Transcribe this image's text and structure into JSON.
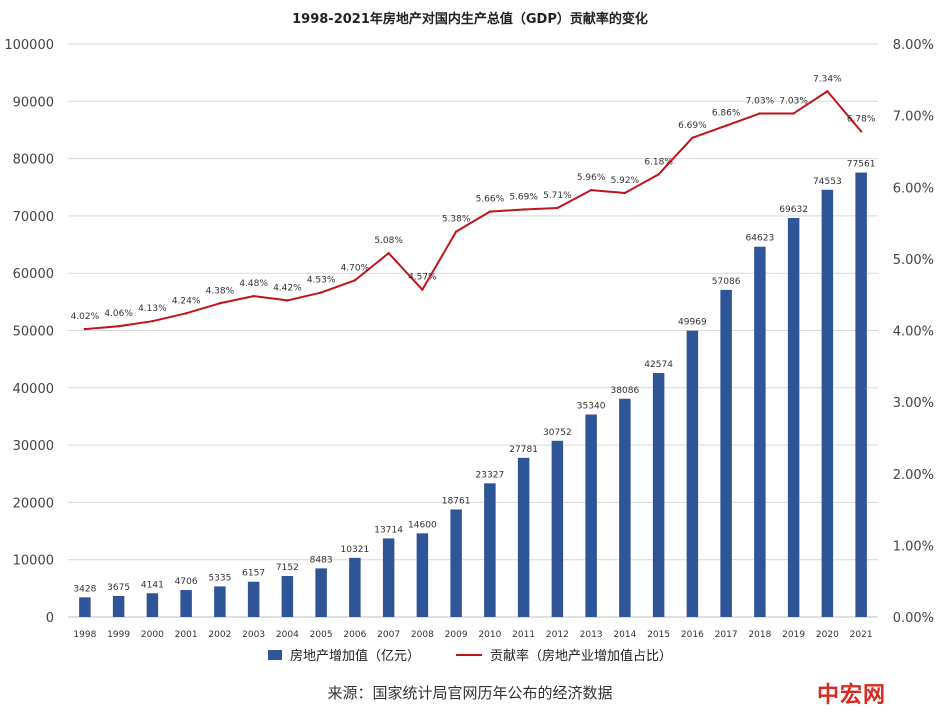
{
  "chart_data": {
    "type": "bar",
    "title": "1998-2021年房地产对国内生产总值（GDP）贡献率的变化",
    "categories": [
      "1998",
      "1999",
      "2000",
      "2001",
      "2002",
      "2003",
      "2004",
      "2005",
      "2006",
      "2007",
      "2008",
      "2009",
      "2010",
      "2011",
      "2012",
      "2013",
      "2014",
      "2015",
      "2016",
      "2017",
      "2018",
      "2019",
      "2020",
      "2021"
    ],
    "series": [
      {
        "name": "房地产增加值（亿元）",
        "type": "bar",
        "axis": "left",
        "color": "#2e5597",
        "values": [
          3428,
          3675,
          4141,
          4706,
          5335,
          6157,
          7152,
          8483,
          10321,
          13714,
          14600,
          18761,
          23327,
          27781,
          30752,
          35340,
          38086,
          42574,
          49969,
          57086,
          64623,
          69632,
          74553,
          77561
        ]
      },
      {
        "name": "贡献率（房地产业增加值占比）",
        "type": "line",
        "axis": "right",
        "color": "#c0141c",
        "values": [
          4.02,
          4.06,
          4.13,
          4.24,
          4.38,
          4.48,
          4.42,
          4.53,
          4.7,
          5.08,
          4.57,
          5.38,
          5.66,
          5.69,
          5.71,
          5.96,
          5.92,
          6.18,
          6.69,
          6.86,
          7.03,
          7.03,
          7.34,
          6.78
        ],
        "labels": [
          "4.02%",
          "4.06%",
          "4.13%",
          "4.24%",
          "4.38%",
          "4.48%",
          "4.42%",
          "4.53%",
          "4.70%",
          "5.08%",
          "4.57%",
          "5.38%",
          "5.66%",
          "5.69%",
          "5.71%",
          "5.96%",
          "5.92%",
          "6.18%",
          "6.69%",
          "6.86%",
          "7.03%",
          "7.03%",
          "7.34%",
          "6.78%"
        ]
      }
    ],
    "y_left": {
      "ylim": [
        0,
        100000
      ],
      "ticks": [
        "0",
        "10000",
        "20000",
        "30000",
        "40000",
        "50000",
        "60000",
        "70000",
        "80000",
        "90000",
        "100000"
      ]
    },
    "y_right": {
      "ylim": [
        0,
        8
      ],
      "ticks": [
        "0.00%",
        "1.00%",
        "2.00%",
        "3.00%",
        "4.00%",
        "5.00%",
        "6.00%",
        "7.00%",
        "8.00%"
      ]
    },
    "grid": true,
    "legend": "bottom"
  },
  "source": "来源：国家统计局官网历年公布的经济数据",
  "logo_text": "中宏网"
}
